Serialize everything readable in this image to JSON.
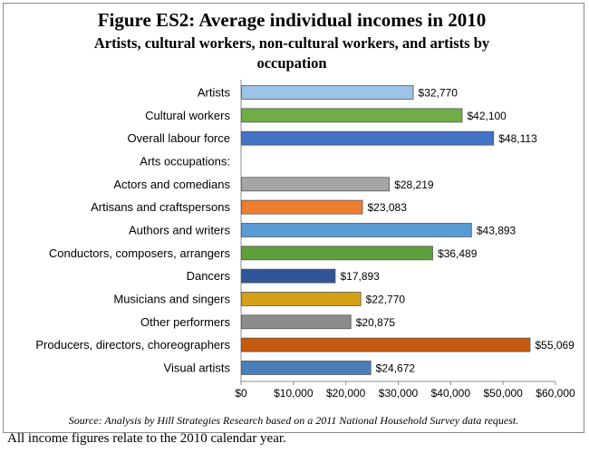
{
  "chart_data": {
    "type": "bar",
    "orientation": "horizontal",
    "title": "Figure ES2: Average individual incomes in 2010",
    "subtitle_lines": [
      "Artists, cultural workers, non-cultural workers, and artists by",
      "occupation"
    ],
    "categories": [
      "Artists",
      "Cultural workers",
      "Overall labour force",
      "Arts occupations:",
      "Actors and comedians",
      "Artisans and craftspersons",
      "Authors and writers",
      "Conductors, composers, arrangers",
      "Dancers",
      "Musicians and singers",
      "Other performers",
      "Producers, directors, choreographers",
      "Visual artists"
    ],
    "values": [
      32770,
      42100,
      48113,
      null,
      28219,
      23083,
      43893,
      36489,
      17893,
      22770,
      20875,
      55069,
      24672
    ],
    "value_labels": [
      "$32,770",
      "$42,100",
      "$48,113",
      "",
      "$28,219",
      "$23,083",
      "$43,893",
      "$36,489",
      "$17,893",
      "$22,770",
      "$20,875",
      "$55,069",
      "$24,672"
    ],
    "colors": [
      "#9dc3e6",
      "#70ad47",
      "#4472c4",
      "#ffffff",
      "#a5a5a5",
      "#ed7d31",
      "#5b9bd5",
      "#5e9e3c",
      "#2f5597",
      "#d4a017",
      "#8c8c8c",
      "#c55a11",
      "#4a7ebb"
    ],
    "bar_outline_color": "#595959",
    "xlim": [
      0,
      60000
    ],
    "xticks": [
      0,
      10000,
      20000,
      30000,
      40000,
      50000,
      60000
    ],
    "xtick_labels": [
      "$0",
      "$10,000",
      "$20,000",
      "$30,000",
      "$40,000",
      "$50,000",
      "$60,000"
    ],
    "xlabel": "",
    "ylabel": "",
    "grid": false,
    "legend": "none",
    "source": "Source: Analysis by Hill Strategies Research based on a 2011 National Household Survey data request."
  },
  "footnote": "All income figures relate to the 2010 calendar year."
}
